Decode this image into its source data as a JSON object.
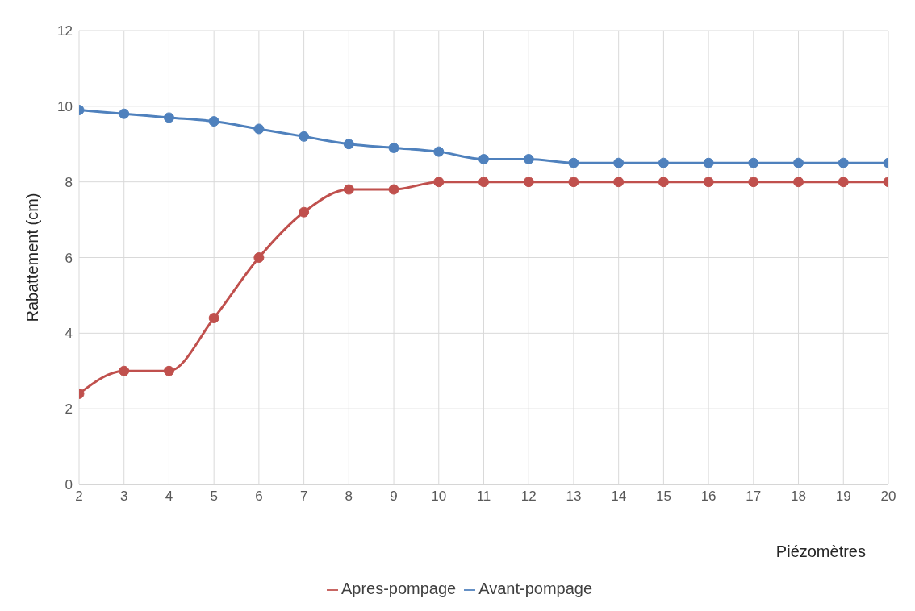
{
  "chart_data": {
    "type": "line",
    "xlabel": "Piézomètres",
    "ylabel": "Rabattement (cm)",
    "x": [
      2,
      3,
      4,
      5,
      6,
      7,
      8,
      9,
      10,
      11,
      12,
      13,
      14,
      15,
      16,
      17,
      18,
      19,
      20
    ],
    "series": [
      {
        "name": "Avant-pompage",
        "color": "#4f81bd",
        "values": [
          9.9,
          9.8,
          9.7,
          9.6,
          9.4,
          9.2,
          9.0,
          8.9,
          8.8,
          8.6,
          8.6,
          8.5,
          8.5,
          8.5,
          8.5,
          8.5,
          8.5,
          8.5,
          8.5
        ]
      },
      {
        "name": "Apres-pompage",
        "color": "#c0504d",
        "values": [
          2.4,
          3.0,
          3.0,
          4.4,
          6.0,
          7.2,
          7.8,
          7.8,
          8.0,
          8.0,
          8.0,
          8.0,
          8.0,
          8.0,
          8.0,
          8.0,
          8.0,
          8.0,
          8.0
        ]
      }
    ],
    "xlim": [
      2,
      20
    ],
    "xticks": [
      2,
      3,
      4,
      5,
      6,
      7,
      8,
      9,
      10,
      11,
      12,
      13,
      14,
      15,
      16,
      17,
      18,
      19,
      20
    ],
    "ylim": [
      0,
      12
    ],
    "yticks": [
      0,
      2,
      4,
      6,
      8,
      10,
      12
    ],
    "grid": true,
    "legend": "bottom",
    "marker": "circle",
    "line_style": "solid"
  }
}
